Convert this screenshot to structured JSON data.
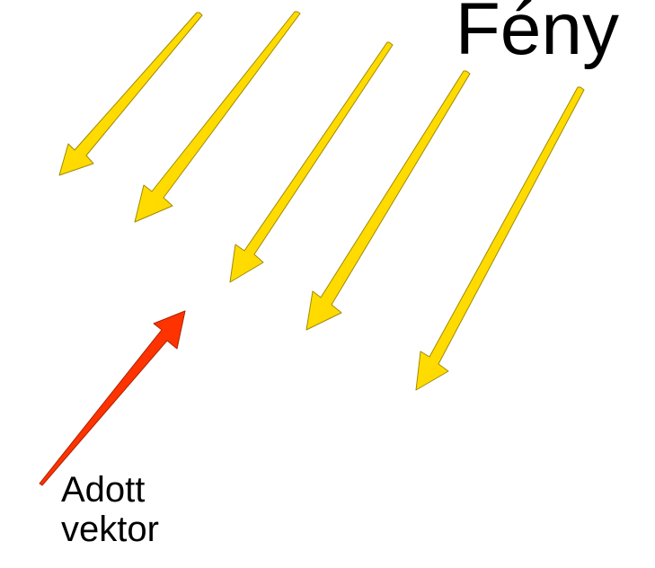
{
  "title": "Fény",
  "caption": {
    "line1": "Adott",
    "line2": "vektor"
  },
  "colors": {
    "light_arrow_fill": "#ffdd00",
    "light_arrow_stroke": "#a08a00",
    "given_vector_fill": "#ff3300",
    "given_vector_stroke": "#aa2200",
    "text": "#000000"
  }
}
